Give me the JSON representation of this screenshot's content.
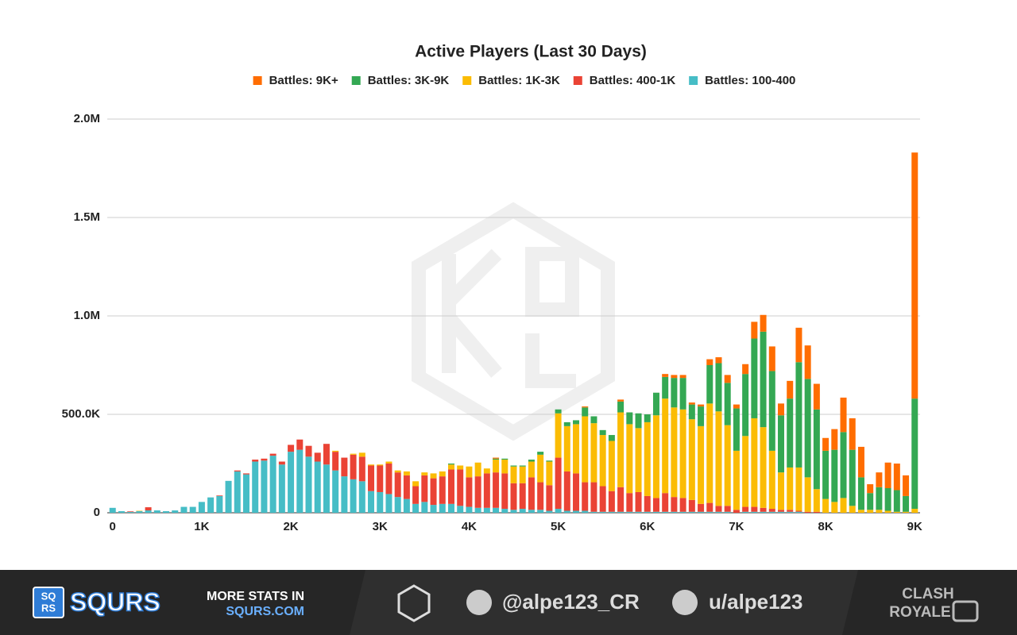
{
  "chart_data": {
    "type": "stacked_bar",
    "title": "Active Players (Last 30 Days)",
    "x": [
      0,
      100,
      200,
      300,
      400,
      500,
      600,
      700,
      800,
      900,
      1000,
      1100,
      1200,
      1300,
      1400,
      1500,
      1600,
      1700,
      1800,
      1900,
      2000,
      2100,
      2200,
      2300,
      2400,
      2500,
      2600,
      2700,
      2800,
      2900,
      3000,
      3100,
      3200,
      3300,
      3400,
      3500,
      3600,
      3700,
      3800,
      3900,
      4000,
      4100,
      4200,
      4300,
      4400,
      4500,
      4600,
      4700,
      4800,
      4900,
      5000,
      5100,
      5200,
      5300,
      5400,
      5500,
      5600,
      5700,
      5800,
      5900,
      6000,
      6100,
      6200,
      6300,
      6400,
      6500,
      6600,
      6700,
      6800,
      6900,
      7000,
      7100,
      7200,
      7300,
      7400,
      7500,
      7600,
      7700,
      7800,
      7900,
      8000,
      8100,
      8200,
      8300,
      8400,
      8500,
      8600,
      8700,
      8800,
      8900,
      9000
    ],
    "xlim": [
      -60,
      9060
    ],
    "xticks": [
      0,
      {
        "value": 1000,
        "label": "1K"
      },
      {
        "value": 2000,
        "label": "2K"
      },
      {
        "value": 3000,
        "label": "3K"
      },
      {
        "value": 4000,
        "label": "4K"
      },
      {
        "value": 5000,
        "label": "5K"
      },
      {
        "value": 6000,
        "label": "6K"
      },
      {
        "value": 7000,
        "label": "7K"
      },
      {
        "value": 8000,
        "label": "8K"
      },
      {
        "value": 9000,
        "label": "9K"
      }
    ],
    "ylim": [
      0,
      2000000
    ],
    "yticks": [
      0,
      {
        "value": 500000,
        "label": "500.0K"
      },
      {
        "value": 1000000,
        "label": "1.0M"
      },
      {
        "value": 1500000,
        "label": "1.5M"
      },
      {
        "value": 2000000,
        "label": "2.0M"
      }
    ],
    "grid": true,
    "series": [
      {
        "name": "Battles: 9K+",
        "color": "#ff6d01",
        "values": [
          0,
          0,
          0,
          0,
          0,
          0,
          0,
          0,
          0,
          0,
          0,
          0,
          0,
          0,
          0,
          0,
          0,
          0,
          0,
          0,
          0,
          0,
          0,
          0,
          0,
          0,
          0,
          0,
          0,
          0,
          0,
          0,
          0,
          0,
          0,
          0,
          0,
          0,
          0,
          0,
          0,
          0,
          0,
          5000,
          0,
          0,
          0,
          0,
          0,
          0,
          0,
          0,
          0,
          5000,
          0,
          0,
          0,
          10000,
          0,
          0,
          0,
          0,
          15000,
          15000,
          15000,
          10000,
          10000,
          30000,
          30000,
          40000,
          20000,
          50000,
          85000,
          85000,
          125000,
          60000,
          90000,
          175000,
          170000,
          130000,
          65000,
          105000,
          175000,
          160000,
          155000,
          45000,
          75000,
          130000,
          135000,
          105000,
          1250000
        ]
      },
      {
        "name": "Battles: 3K-9K",
        "color": "#34a853",
        "values": [
          0,
          0,
          0,
          0,
          0,
          0,
          0,
          0,
          0,
          0,
          0,
          0,
          0,
          0,
          0,
          0,
          0,
          0,
          0,
          0,
          0,
          0,
          0,
          0,
          0,
          0,
          0,
          0,
          0,
          0,
          0,
          0,
          0,
          0,
          0,
          0,
          0,
          0,
          5000,
          0,
          0,
          0,
          0,
          5000,
          5000,
          5000,
          5000,
          10000,
          15000,
          5000,
          20000,
          20000,
          20000,
          45000,
          35000,
          25000,
          30000,
          55000,
          60000,
          75000,
          40000,
          115000,
          110000,
          150000,
          160000,
          75000,
          100000,
          195000,
          245000,
          215000,
          215000,
          315000,
          405000,
          485000,
          405000,
          290000,
          350000,
          535000,
          500000,
          405000,
          245000,
          265000,
          335000,
          285000,
          165000,
          85000,
          115000,
          115000,
          110000,
          80000,
          560000
        ]
      },
      {
        "name": "Battles: 1K-3K",
        "color": "#fbbc04",
        "values": [
          0,
          0,
          0,
          2000,
          0,
          0,
          0,
          0,
          0,
          0,
          0,
          0,
          0,
          0,
          0,
          0,
          0,
          0,
          0,
          0,
          0,
          0,
          0,
          0,
          0,
          5000,
          0,
          5000,
          20000,
          5000,
          5000,
          10000,
          10000,
          20000,
          25000,
          15000,
          25000,
          25000,
          25000,
          20000,
          55000,
          70000,
          25000,
          65000,
          70000,
          85000,
          85000,
          80000,
          140000,
          120000,
          225000,
          230000,
          250000,
          335000,
          300000,
          260000,
          255000,
          380000,
          350000,
          325000,
          375000,
          420000,
          480000,
          455000,
          450000,
          410000,
          395000,
          505000,
          480000,
          410000,
          300000,
          360000,
          450000,
          410000,
          295000,
          190000,
          215000,
          220000,
          175000,
          115000,
          70000,
          55000,
          75000,
          35000,
          15000,
          15000,
          15000,
          10000,
          5000,
          5000,
          20000
        ]
      },
      {
        "name": "Battles: 400-1K",
        "color": "#ea4335",
        "values": [
          0,
          0,
          3000,
          0,
          16000,
          0,
          0,
          0,
          0,
          0,
          0,
          0,
          3000,
          0,
          5000,
          5000,
          10000,
          10000,
          10000,
          15000,
          35000,
          52000,
          55000,
          45000,
          105000,
          95000,
          95000,
          125000,
          125000,
          130000,
          135000,
          155000,
          125000,
          120000,
          90000,
          135000,
          135000,
          140000,
          175000,
          185000,
          150000,
          160000,
          175000,
          180000,
          180000,
          135000,
          130000,
          165000,
          140000,
          130000,
          260000,
          200000,
          190000,
          145000,
          150000,
          130000,
          105000,
          125000,
          95000,
          100000,
          80000,
          70000,
          95000,
          75000,
          70000,
          60000,
          40000,
          45000,
          30000,
          30000,
          15000,
          25000,
          25000,
          20000,
          15000,
          10000,
          10000,
          5000,
          5000,
          5000,
          0,
          0,
          0,
          0,
          0,
          0,
          0,
          0,
          0,
          0,
          0
        ]
      },
      {
        "name": "Battles: 100-400",
        "color": "#46bdc6",
        "values": [
          25000,
          8000,
          4000,
          8000,
          12000,
          12000,
          8000,
          12000,
          30000,
          30000,
          55000,
          78000,
          85000,
          162000,
          210000,
          195000,
          260000,
          265000,
          290000,
          245000,
          310000,
          320000,
          285000,
          260000,
          245000,
          215000,
          185000,
          170000,
          160000,
          110000,
          105000,
          95000,
          80000,
          70000,
          45000,
          55000,
          40000,
          45000,
          45000,
          35000,
          30000,
          25000,
          25000,
          25000,
          20000,
          15000,
          20000,
          15000,
          15000,
          10000,
          20000,
          10000,
          10000,
          10000,
          5000,
          5000,
          5000,
          5000,
          5000,
          5000,
          5000,
          5000,
          5000,
          5000,
          5000,
          5000,
          5000,
          5000,
          5000,
          5000,
          0,
          5000,
          5000,
          5000,
          5000,
          5000,
          5000,
          5000,
          0,
          0,
          0,
          0,
          0,
          0,
          0,
          0,
          0,
          0,
          0,
          0,
          0
        ]
      }
    ]
  },
  "footer": {
    "logo_letters": [
      "SQ",
      "RS"
    ],
    "brand": "SQURS",
    "promo": "MORE STATS IN",
    "site": "SQURS.COM",
    "twitter": "@alpe123_CR",
    "reddit": "u/alpe123",
    "game": [
      "CLASH",
      "ROYALE"
    ]
  }
}
